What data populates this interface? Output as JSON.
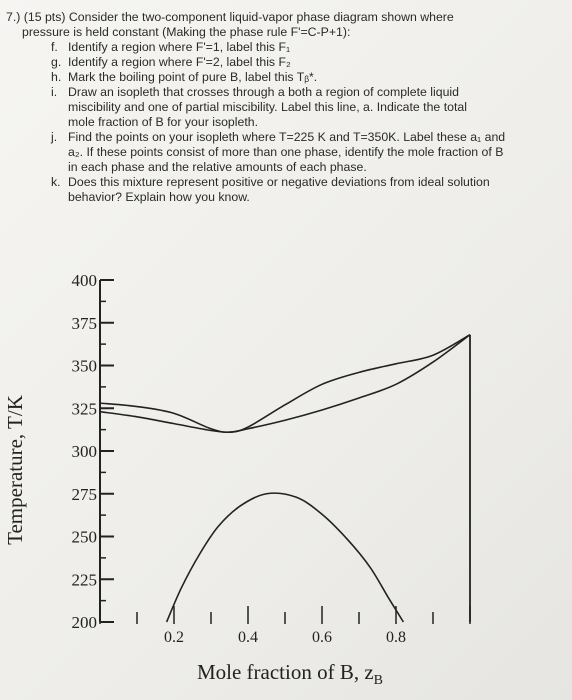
{
  "question": {
    "number": "7.)",
    "points": "(15 pts)",
    "line1": "Consider the two-component liquid-vapor phase diagram shown where",
    "line2": "pressure is held constant (Making the phase rule F'=C-P+1):",
    "items": [
      {
        "mark": "f.",
        "lines": [
          "Identify a region where F'=1, label this F₁"
        ]
      },
      {
        "mark": "g.",
        "lines": [
          "Identify a region where F'=2, label this F₂"
        ]
      },
      {
        "mark": "h.",
        "lines": [
          "Mark the boiling point of pure B, label this Tᵦ*."
        ]
      },
      {
        "mark": "i.",
        "lines": [
          "Draw an isopleth that crosses through a both a region of complete liquid",
          "miscibility and one of partial miscibility. Label this line, a. Indicate the total",
          "mole fraction of B for your isopleth."
        ]
      },
      {
        "mark": "j.",
        "lines": [
          "Find the points on your isopleth where T=225 K and T=350K. Label these a₁ and",
          "a₂. If these points consist of more than one phase, identify the mole fraction of B",
          "in each phase and the relative amounts of each phase."
        ]
      },
      {
        "mark": "k.",
        "lines": [
          "Does this mixture represent positive or negative deviations from ideal solution",
          "behavior? Explain how you know."
        ]
      }
    ]
  },
  "chart_data": {
    "type": "line",
    "ylabel": "Temperature, T/K",
    "xlabel": "Mole fraction of B, z",
    "xlabel_sub": "B",
    "xlim": [
      0,
      1
    ],
    "ylim": [
      200,
      400
    ],
    "y_ticks": [
      400,
      375,
      350,
      325,
      300,
      275,
      250,
      225,
      200
    ],
    "x_ticks": [
      0.2,
      0.4,
      0.6,
      0.8
    ],
    "series": [
      {
        "x": [
          0.0,
          0.1,
          0.2,
          0.3,
          0.35,
          0.4,
          0.5,
          0.6,
          0.7,
          0.8,
          0.9,
          1.0
        ],
        "y": [
          328,
          326,
          322,
          313,
          311,
          314,
          327,
          339,
          346,
          351,
          356,
          368
        ]
      },
      {
        "x": [
          0.0,
          0.1,
          0.2,
          0.3,
          0.35,
          0.4,
          0.5,
          0.6,
          0.7,
          0.8,
          0.9,
          1.0
        ],
        "y": [
          323,
          320,
          316,
          312,
          311,
          313,
          318,
          324,
          331,
          339,
          352,
          368
        ]
      },
      {
        "x": [
          0.18,
          0.22,
          0.27,
          0.32,
          0.38,
          0.45,
          0.53,
          0.6,
          0.67,
          0.73,
          0.78,
          0.82
        ],
        "y": [
          200,
          220,
          240,
          256,
          268,
          275,
          273,
          263,
          248,
          232,
          214,
          200
        ]
      }
    ]
  }
}
